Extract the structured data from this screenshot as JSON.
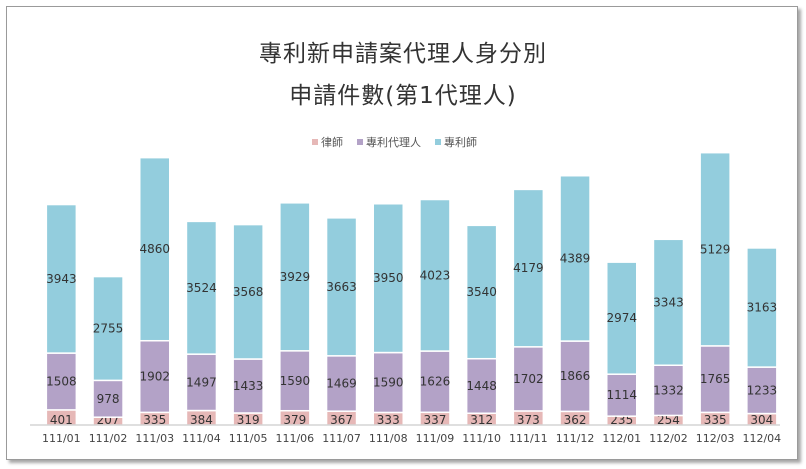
{
  "chart_data": {
    "type": "bar",
    "stacked": true,
    "title": "專利新申請案代理人身分別",
    "subtitle": "申請件數(第1代理人)",
    "categories": [
      "111/01",
      "111/02",
      "111/03",
      "111/04",
      "111/05",
      "111/06",
      "111/07",
      "111/08",
      "111/09",
      "111/10",
      "111/11",
      "111/12",
      "112/01",
      "112/02",
      "112/03",
      "112/04"
    ],
    "series": [
      {
        "name": "律師",
        "color": "#e6b8b7",
        "values": [
          401,
          207,
          335,
          384,
          319,
          379,
          367,
          333,
          337,
          312,
          373,
          362,
          235,
          254,
          335,
          304
        ]
      },
      {
        "name": "專利代理人",
        "color": "#b3a2c7",
        "values": [
          1508,
          978,
          1902,
          1497,
          1433,
          1590,
          1469,
          1590,
          1626,
          1448,
          1702,
          1866,
          1114,
          1332,
          1765,
          1233
        ]
      },
      {
        "name": "專利師",
        "color": "#93cddd",
        "values": [
          3943,
          2755,
          4860,
          3524,
          3568,
          3929,
          3663,
          3950,
          4023,
          3540,
          4179,
          4389,
          2974,
          3343,
          5129,
          3163
        ]
      }
    ],
    "legend_position": "top",
    "grid": false,
    "ylim": [
      0,
      7300
    ]
  }
}
